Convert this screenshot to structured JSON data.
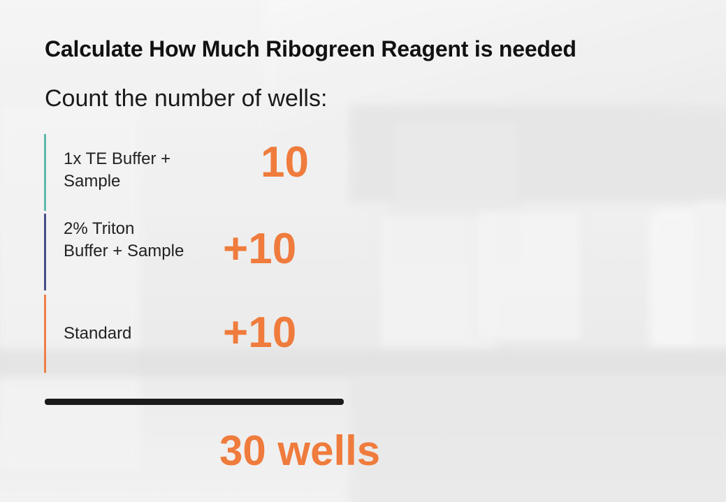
{
  "slide": {
    "title": "Calculate How Much Ribogreen Reagent is needed",
    "subtitle": "Count the number of wells:"
  },
  "rows": [
    {
      "label": "1x TE Buffer +\nSample",
      "value": "10",
      "bar_color": "#5fb9ad"
    },
    {
      "label": "2% Triton\nBuffer + Sample",
      "value": "+10",
      "bar_color": "#4a4f86"
    },
    {
      "label": "Standard",
      "value": "+10",
      "bar_color": "#ee7f45"
    }
  ],
  "total": {
    "value": "30 wells"
  },
  "colors": {
    "accent": "#ef7b3c",
    "text": "#111111",
    "divider": "#1b1b1b"
  }
}
